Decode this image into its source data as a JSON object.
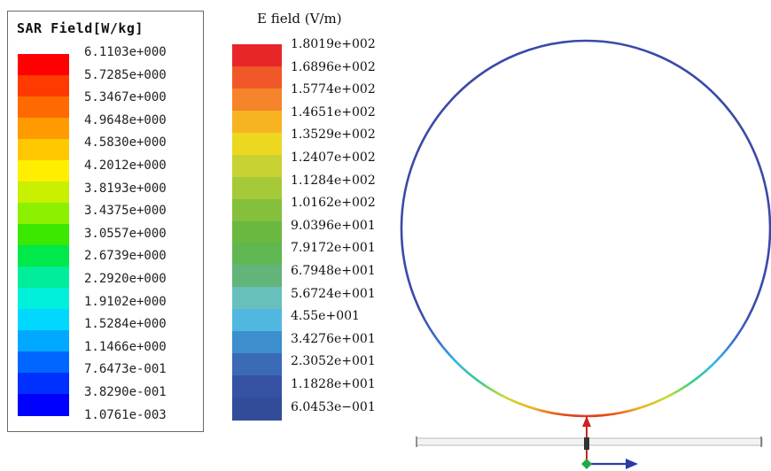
{
  "sar_legend": {
    "title": "SAR Field[W/kg]",
    "labels": [
      "6.1103e+000",
      "5.7285e+000",
      "5.3467e+000",
      "4.9648e+000",
      "4.5830e+000",
      "4.2012e+000",
      "3.8193e+000",
      "3.4375e+000",
      "3.0557e+000",
      "2.6739e+000",
      "2.2920e+000",
      "1.9102e+000",
      "1.5284e+000",
      "1.1466e+000",
      "7.6473e-001",
      "3.8290e-001",
      "1.0761e-003"
    ],
    "colors": [
      "#ff0000",
      "#ff3a00",
      "#ff6a00",
      "#ff9a00",
      "#ffc800",
      "#ffee00",
      "#c8f000",
      "#8cf000",
      "#3ae800",
      "#00e84a",
      "#00ee9a",
      "#00f0dc",
      "#00d8ff",
      "#00a8ff",
      "#0066ff",
      "#0030ff",
      "#0000ff"
    ]
  },
  "efield_legend": {
    "title": "E field (V/m)",
    "labels": [
      "1.8019e+002",
      "1.6896e+002",
      "1.5774e+002",
      "1.4651e+002",
      "1.3529e+002",
      "1.2407e+002",
      "1.1284e+002",
      "1.0162e+002",
      "9.0396e+001",
      "7.9172e+001",
      "6.7948e+001",
      "5.6724e+001",
      "4.55e+001",
      "3.4276e+001",
      "2.3052e+001",
      "1.1828e+001",
      "6.0453e−001"
    ],
    "colors": [
      "#e8262a",
      "#f0582a",
      "#f5842a",
      "#f8b322",
      "#ecd820",
      "#c8d232",
      "#a6c93a",
      "#84c03c",
      "#6ab840",
      "#60b650",
      "#62b47a",
      "#68c0bc",
      "#50b8e0",
      "#3c8ecc",
      "#3a6ab6",
      "#3552a4",
      "#324c9a"
    ]
  },
  "diagram": {
    "ring_color": "#3a4aa8",
    "axis_up_color": "#cc2222",
    "axis_right_color": "#2a3aa8",
    "origin_color": "#22aa44"
  }
}
